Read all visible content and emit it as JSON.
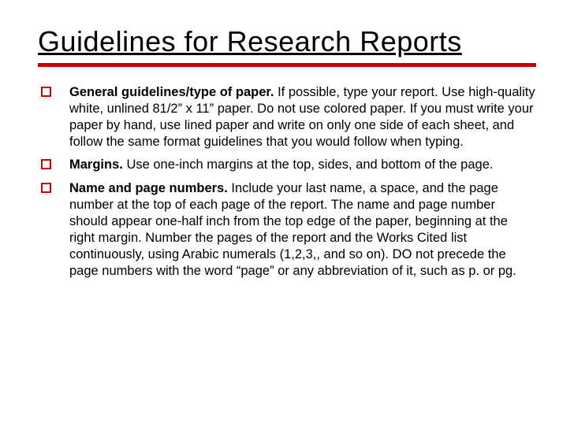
{
  "title": "Guidelines for Research Reports",
  "accent_color": "#cc0000",
  "text_color": "#000000",
  "background_color": "#ffffff",
  "bullets": [
    {
      "heading": "General guidelines/type of paper.",
      "body": "  If possible, type your report.  Use high-quality white, unlined 81/2” x 11” paper.  Do not use colored paper.  If you must write your paper by hand, use lined paper and write on only one side of each sheet, and follow the same format guidelines that you would follow when typing."
    },
    {
      "heading": "Margins.",
      "body": "  Use one-inch margins at the top, sides, and bottom of the page."
    },
    {
      "heading": "Name and page numbers.",
      "body": "  Include your last name, a space, and the page number at the top of each page of the report.  The name and page number should appear one-half inch from the top edge of the paper, beginning at the right margin.  Number the pages of the report and the Works Cited list continuously, using Arabic numerals (1,2,3,, and so on).  DO not precede the page numbers with the word “page” or any abbreviation of it, such as p. or pg."
    }
  ]
}
